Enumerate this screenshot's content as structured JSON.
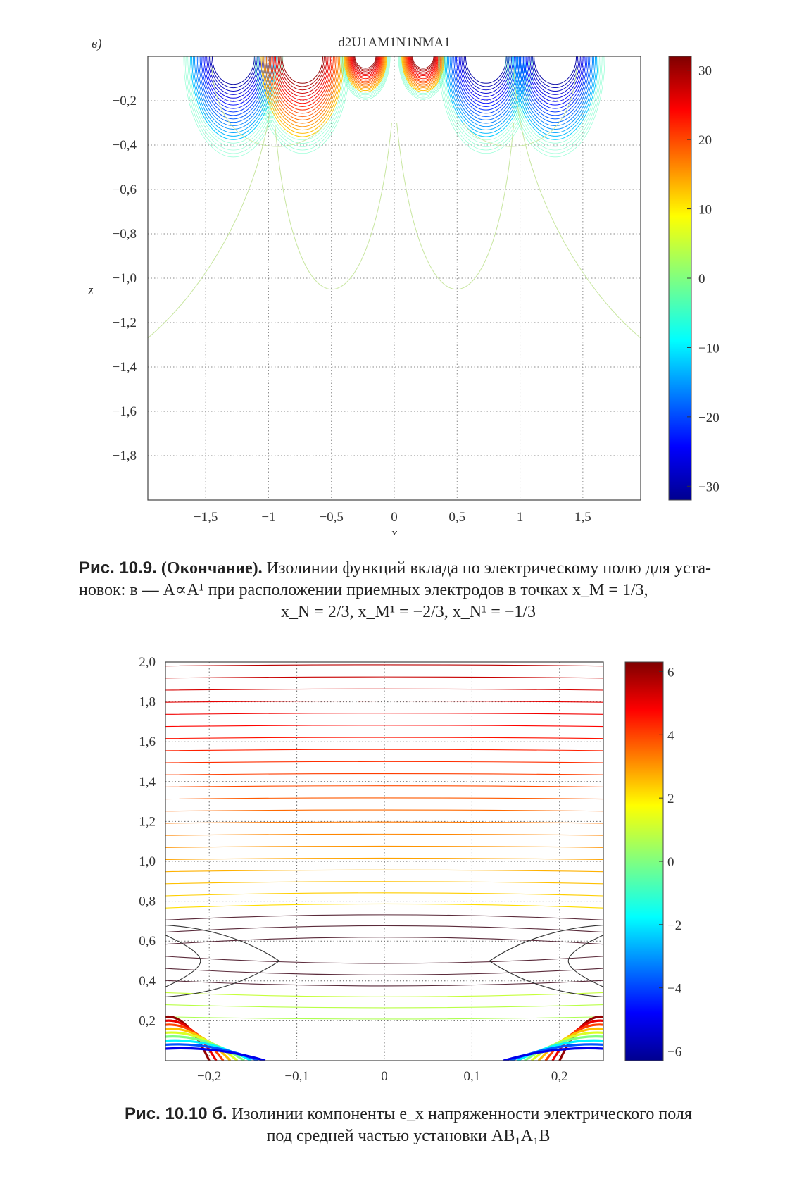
{
  "figure_a": {
    "panel_letter": "в)",
    "title": "d2U1AM1N1NMA1",
    "xlabel": "x",
    "ylabel": "z",
    "x_ticks": [
      "−1,5",
      "−1",
      "−0,5",
      "0",
      "0,5",
      "1",
      "1,5"
    ],
    "y_ticks": [
      "−0,2",
      "−0,4",
      "−0,6",
      "−0,8",
      "−1,0",
      "−1,2",
      "−1,4",
      "−1,6",
      "−1,8"
    ],
    "colorbar_ticks": [
      "30",
      "20",
      "10",
      "0",
      "−10",
      "−20",
      "−30"
    ]
  },
  "caption_a": {
    "label": "Рис. 10.9.",
    "note": "(Окончание).",
    "line1": "Изолинии функций вклада по электрическому полю для уста-",
    "line2": "новок: в — A∝A¹ при расположении приемных электродов в точках x_M = 1/3,",
    "line3": "x_N = 2/3, x_M¹ = −2/3, x_N¹ = −1/3"
  },
  "figure_b": {
    "x_ticks": [
      "−0,2",
      "−0,1",
      "0",
      "0,1",
      "0,2"
    ],
    "y_ticks": [
      "2,0",
      "1,8",
      "1,6",
      "1,4",
      "1,2",
      "1,0",
      "0,8",
      "0,6",
      "0,4",
      "0,2"
    ],
    "colorbar_ticks": [
      "6",
      "4",
      "2",
      "0",
      "−2",
      "−4",
      "−6"
    ]
  },
  "caption_b": {
    "label": "Рис. 10.10 б.",
    "line1": "Изолинии компоненты e_x напряженности электрического поля",
    "line2": "под средней частью установки AB₁A₁B"
  },
  "chart_data": [
    {
      "type": "contour",
      "title": "d2U1AM1N1NMA1",
      "xlabel": "x",
      "ylabel": "z",
      "xlim": [
        -1.96,
        1.96
      ],
      "ylim": [
        -2.0,
        0.0
      ],
      "grid": true,
      "x_ticks": [
        -1.5,
        -1,
        -0.5,
        0,
        0.5,
        1,
        1.5
      ],
      "y_ticks": [
        -0.2,
        -0.4,
        -0.6,
        -0.8,
        -1.0,
        -1.2,
        -1.4,
        -1.6,
        -1.8
      ],
      "colorbar": {
        "range": [
          -32,
          32
        ],
        "ticks": [
          30,
          20,
          10,
          0,
          -10,
          -20,
          -30
        ]
      },
      "lobes": [
        {
          "center_x": -1.28,
          "half_width": 0.28,
          "depth": 0.28,
          "sign": -1
        },
        {
          "center_x": -0.73,
          "half_width": 0.27,
          "depth": 0.27,
          "sign": 1
        },
        {
          "center_x": -0.23,
          "half_width": 0.14,
          "depth": 0.12,
          "sign": 1
        },
        {
          "center_x": 0.23,
          "half_width": 0.14,
          "depth": 0.12,
          "sign": 1
        },
        {
          "center_x": 0.73,
          "half_width": 0.27,
          "depth": 0.27,
          "sign": -1
        },
        {
          "center_x": 1.28,
          "half_width": 0.28,
          "depth": 0.28,
          "sign": -1
        }
      ]
    },
    {
      "type": "contour",
      "xlim": [
        -0.25,
        0.25
      ],
      "ylim": [
        0.0,
        2.0
      ],
      "grid": true,
      "x_ticks": [
        -0.2,
        -0.1,
        0,
        0.1,
        0.2
      ],
      "y_ticks": [
        2.0,
        1.8,
        1.6,
        1.4,
        1.2,
        1.0,
        0.8,
        0.6,
        0.4,
        0.2
      ],
      "colorbar": {
        "range": [
          -6.3,
          6.3
        ],
        "ticks": [
          6,
          4,
          2,
          0,
          -2,
          -4,
          -6
        ]
      },
      "level_count": 30
    }
  ]
}
